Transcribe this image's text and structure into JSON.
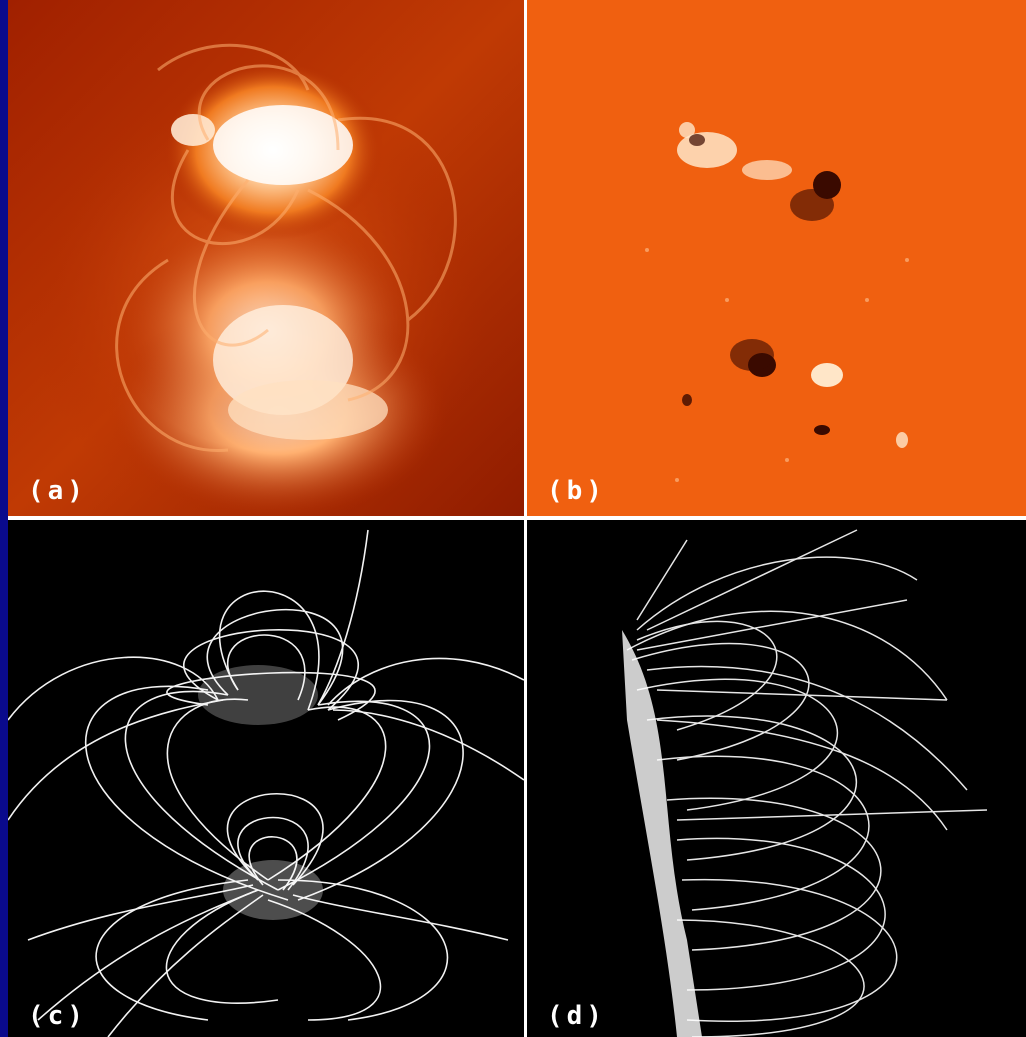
{
  "panels": {
    "a": {
      "label": "(a)",
      "kind": "coronal loop image"
    },
    "b": {
      "label": "(b)",
      "kind": "magnetogram"
    },
    "c": {
      "label": "(c)",
      "kind": "field line extrapolation (top view)"
    },
    "d": {
      "label": "(d)",
      "kind": "field line extrapolation (side view)"
    }
  },
  "colors": {
    "background": "#0a0a8c",
    "divider": "#ffffff",
    "panel_a_base": "#b02a00",
    "panel_b_base": "#f06010",
    "field_lines": "#ffffff",
    "field_bg": "#000000"
  }
}
